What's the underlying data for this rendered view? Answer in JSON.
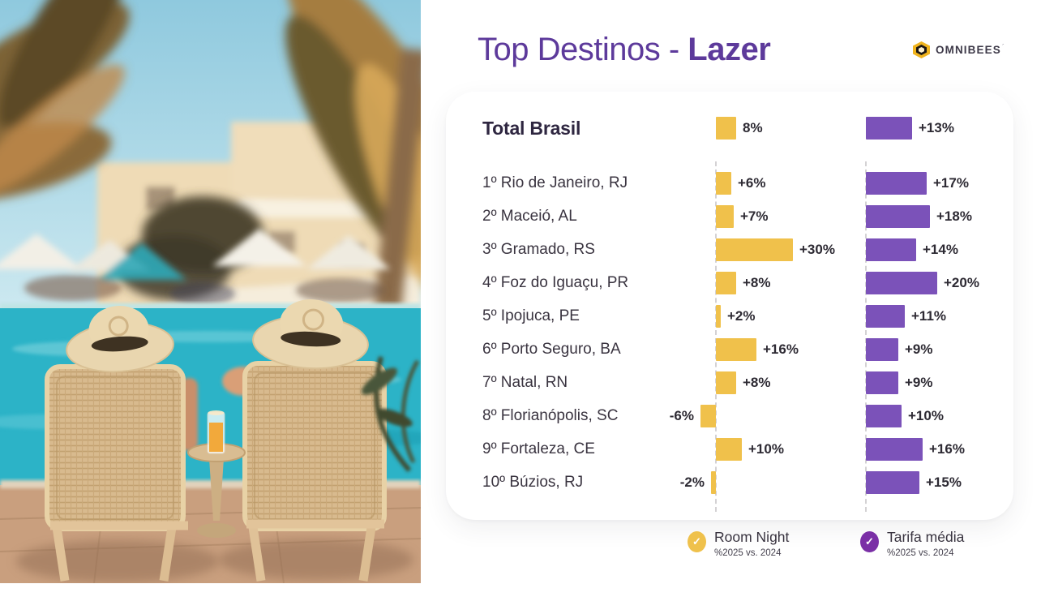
{
  "header": {
    "title_regular": "Top Destinos -",
    "title_bold": "Lazer",
    "title_color": "#5D3A9B"
  },
  "logo": {
    "text": "OMNIBEES",
    "hex_color": "#F0B41E"
  },
  "chart_data": {
    "type": "bar",
    "orientation": "horizontal",
    "title": "Top Destinos - Lazer",
    "total_row": {
      "label": "Total Brasil",
      "room_night": 8,
      "room_night_display": "8%",
      "tarifa_media": 13,
      "tarifa_media_display": "+13%"
    },
    "categories": [
      "1º Rio de Janeiro, RJ",
      "2º Maceió, AL",
      "3º Gramado, RS",
      "4º Foz do Iguaçu, PR",
      "5º Ipojuca, PE",
      "6º Porto Seguro, BA",
      "7º Natal, RN",
      "8º Florianópolis, SC",
      "9º Fortaleza, CE",
      "10º Búzios, RJ"
    ],
    "series": [
      {
        "name": "Room Night",
        "unit": "%",
        "color": "#F0C14B",
        "values": [
          6,
          7,
          30,
          8,
          2,
          16,
          8,
          -6,
          10,
          -2
        ],
        "displays": [
          "+6%",
          "+7%",
          "+30%",
          "+8%",
          "+2%",
          "+16%",
          "+8%",
          "-6%",
          "+10%",
          "-2%"
        ]
      },
      {
        "name": "Tarifa média",
        "unit": "%",
        "color": "#7B52B9",
        "values": [
          17,
          18,
          14,
          20,
          11,
          9,
          9,
          10,
          16,
          15
        ],
        "displays": [
          "+17%",
          "+18%",
          "+14%",
          "+20%",
          "+11%",
          "+9%",
          "+9%",
          "+10%",
          "+16%",
          "+15%"
        ]
      }
    ],
    "note": "%2025 vs. 2024",
    "baseline_value": 0,
    "grid": "dashed-baselines"
  },
  "legend": {
    "items": [
      {
        "label": "Room Night",
        "sublabel": "%2025 vs. 2024",
        "color": "#EFC14C"
      },
      {
        "label": "Tarifa média",
        "sublabel": "%2025 vs. 2024",
        "color": "#7A2FA6"
      }
    ]
  },
  "colors": {
    "room_night_bar": "#F0C14B",
    "tarifa_media_bar": "#7B52B9",
    "title_purple": "#5D3A9B",
    "text_dark": "#2D2A33"
  }
}
